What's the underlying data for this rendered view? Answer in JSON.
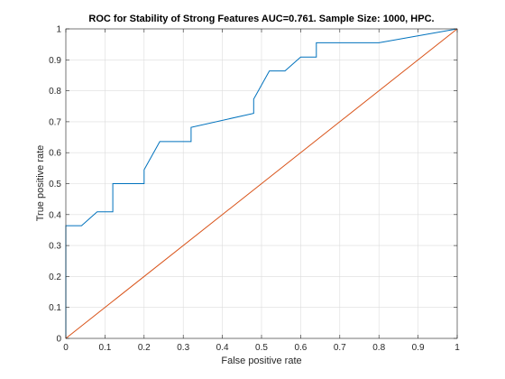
{
  "chart_data": {
    "type": "line",
    "title": "ROC for Stability of Strong Features AUC=0.761. Sample Size: 1000, HPC.",
    "xlabel": "False positive rate",
    "ylabel": "True positive rate",
    "xlim": [
      0,
      1
    ],
    "ylim": [
      0,
      1
    ],
    "grid": true,
    "xticks": [
      "0",
      "0.1",
      "0.2",
      "0.3",
      "0.4",
      "0.5",
      "0.6",
      "0.7",
      "0.8",
      "0.9",
      "1"
    ],
    "yticks": [
      "0",
      "0.1",
      "0.2",
      "0.3",
      "0.4",
      "0.5",
      "0.6",
      "0.7",
      "0.8",
      "0.9",
      "1"
    ],
    "colors": {
      "roc": "#0072bd",
      "diagonal": "#d95319",
      "grid": "#dcdcdc",
      "axis": "#262626"
    },
    "series": [
      {
        "x": [
          0,
          0,
          0.04,
          0.08,
          0.12,
          0.12,
          0.2,
          0.2,
          0.24,
          0.32,
          0.32,
          0.48,
          0.48,
          0.52,
          0.56,
          0.6,
          0.64,
          0.64,
          0.8,
          1
        ],
        "y": [
          0,
          0.364,
          0.364,
          0.409,
          0.409,
          0.5,
          0.5,
          0.545,
          0.636,
          0.636,
          0.682,
          0.727,
          0.773,
          0.864,
          0.864,
          0.909,
          0.909,
          0.955,
          0.955,
          1
        ]
      },
      {
        "x": [
          0,
          1
        ],
        "y": [
          0,
          1
        ]
      }
    ]
  }
}
